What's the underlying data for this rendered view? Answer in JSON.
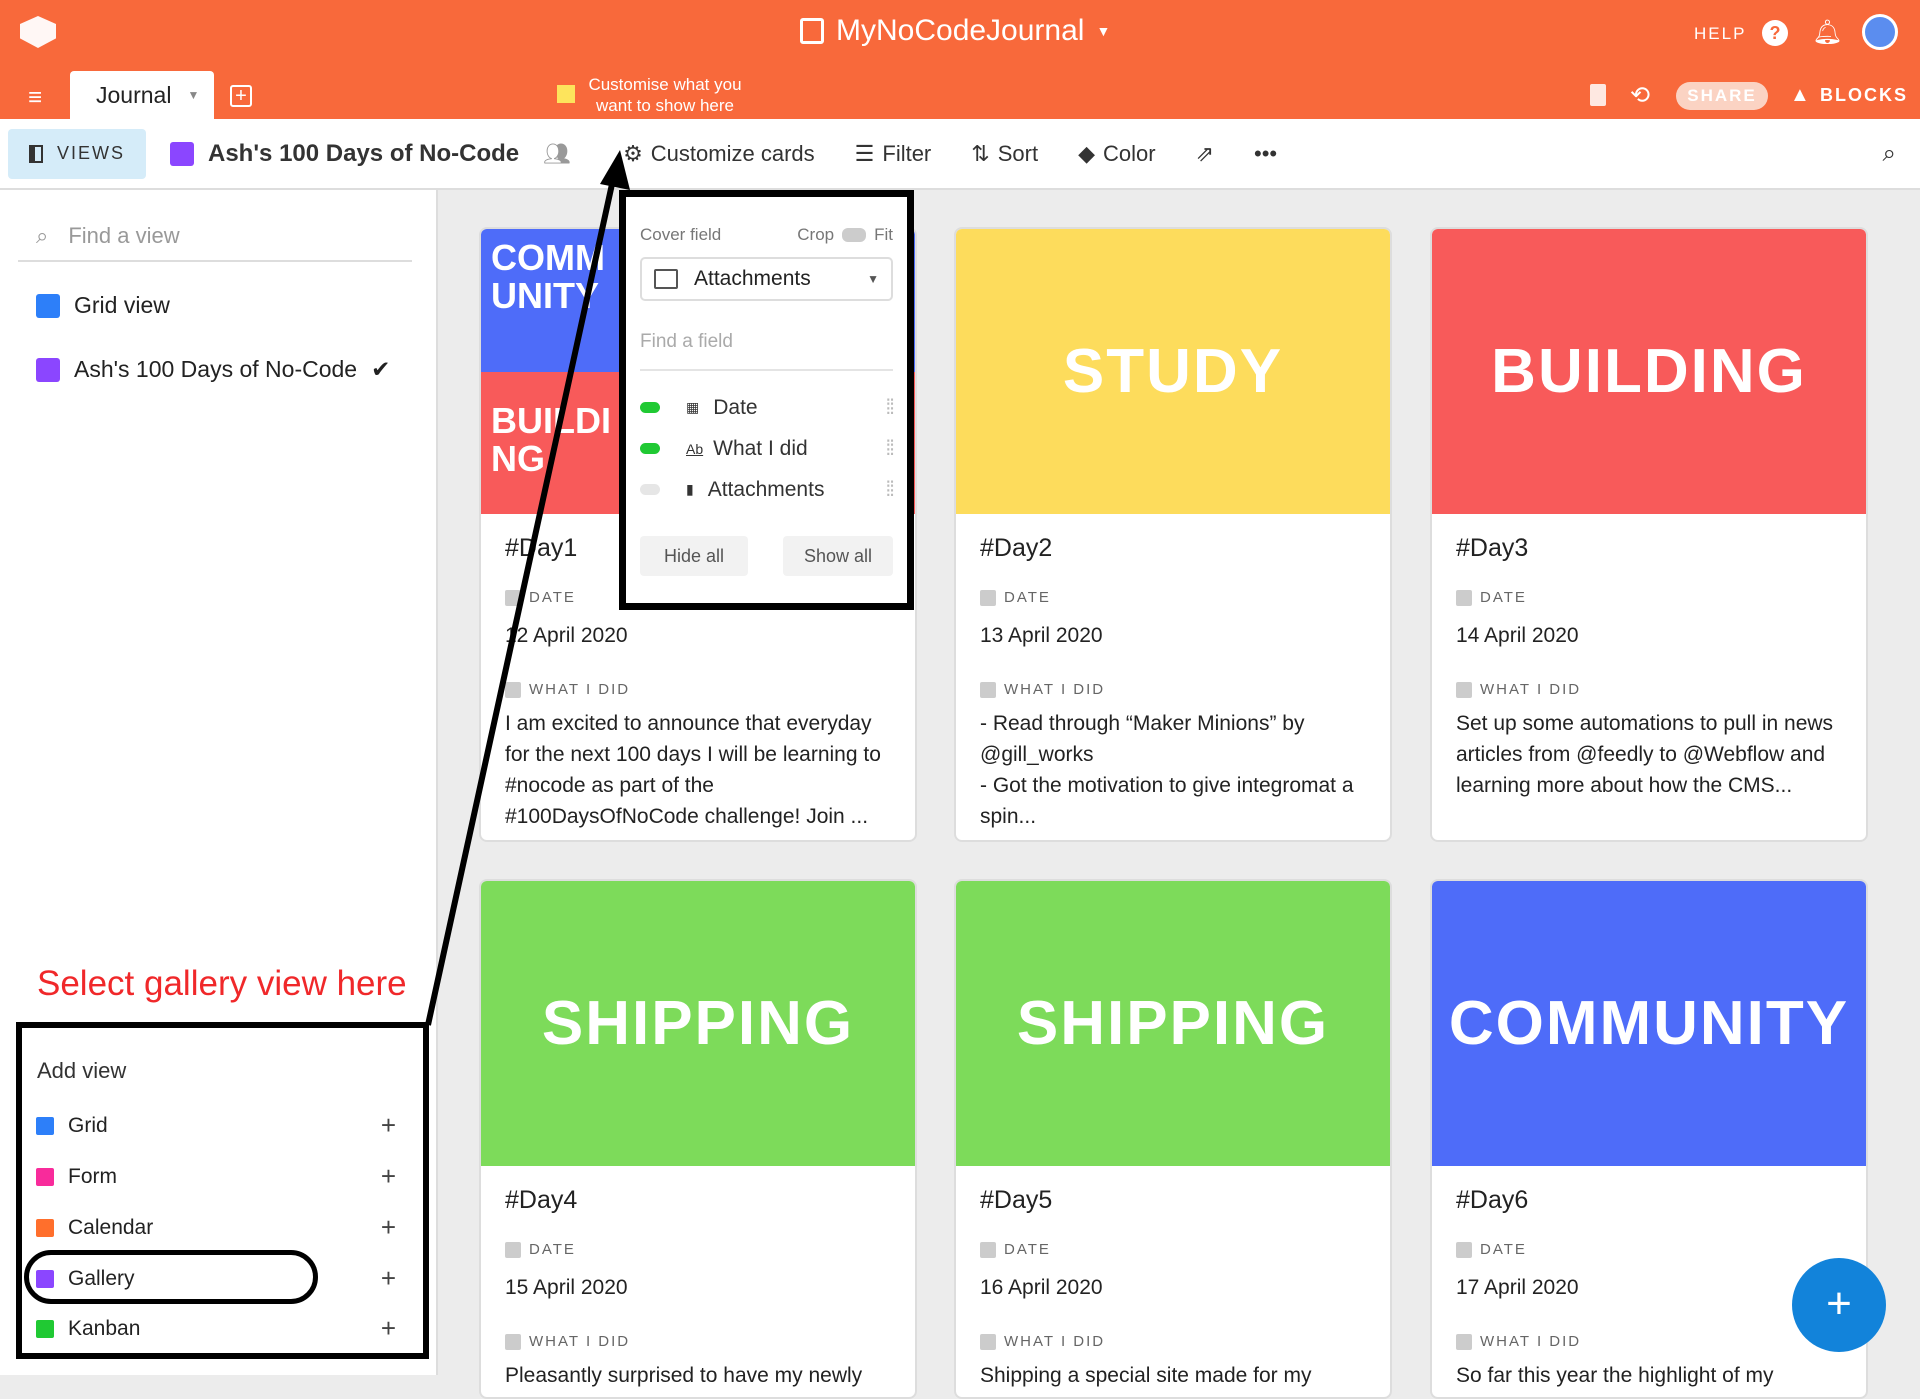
{
  "app": {
    "base_name": "MyNoCodeJournal",
    "help": "HELP",
    "share": "SHARE",
    "blocks": "BLOCKS",
    "brand_color": "#f8693b"
  },
  "tabs": [
    {
      "label": "Journal"
    }
  ],
  "tip": "Customise what you want to show here",
  "toolbar": {
    "views": "VIEWS",
    "view_name": "Ash's 100 Days of No-Code",
    "customize": "Customize cards",
    "filter": "Filter",
    "sort": "Sort",
    "color": "Color"
  },
  "sidebar": {
    "search_placeholder": "Find a view",
    "views": [
      {
        "label": "Grid view",
        "icon": "grid-icon"
      },
      {
        "label": "Ash's 100 Days of No-Code",
        "icon": "gallery-icon",
        "selected": true
      }
    ],
    "annotation": "Select gallery view here",
    "add_view": {
      "title": "Add view",
      "items": [
        {
          "label": "Grid",
          "color": "#2d7ff9"
        },
        {
          "label": "Form",
          "color": "#f82b9b"
        },
        {
          "label": "Calendar",
          "color": "#ff6f2c"
        },
        {
          "label": "Gallery",
          "color": "#8b46ff"
        },
        {
          "label": "Kanban",
          "color": "#20c933"
        }
      ]
    }
  },
  "popup": {
    "cover_field": "Cover field",
    "crop": "Crop",
    "fit": "Fit",
    "selected": "Attachments",
    "find_placeholder": "Find a field",
    "fields": [
      {
        "label": "Date",
        "on": true
      },
      {
        "label": "What I did",
        "on": true
      },
      {
        "label": "Attachments",
        "on": false
      }
    ],
    "hide_all": "Hide all",
    "show_all": "Show all"
  },
  "labels": {
    "date": "DATE",
    "what": "WHAT I DID"
  },
  "cards": [
    {
      "cover": "COMMUNITY",
      "cover2": "BUILDING",
      "color": "#4e6cf9",
      "color2": "#f85a5a",
      "title": "#Day1",
      "date": "12 April 2020",
      "text": "I am excited to announce that everyday for the next 100 days I will be learning to #nocode as part of the #100DaysOfNoCode challenge! Join ..."
    },
    {
      "cover": "STUDY",
      "color": "#fddc5c",
      "title": "#Day2",
      "date": "13 April 2020",
      "text": "- Read through “Maker Minions” by @gill_works\n- Got the motivation to give integromat a spin..."
    },
    {
      "cover": "BUILDING",
      "color": "#f85a5a",
      "title": "#Day3",
      "date": "14 April 2020",
      "text": "Set up some automations to pull in news articles from @feedly to @Webflow and learning more about how the CMS..."
    },
    {
      "cover": "SHIPPING",
      "color": "#7ddb5a",
      "title": "#Day4",
      "date": "15 April 2020",
      "text": "Pleasantly surprised to have my newly"
    },
    {
      "cover": "SHIPPING",
      "color": "#7ddb5a",
      "title": "#Day5",
      "date": "16 April 2020",
      "text": "Shipping a special site made for my"
    },
    {
      "cover": "COMMUNITY",
      "color": "#4e6cf9",
      "title": "#Day6",
      "date": "17 April 2020",
      "text": "So far this year the highlight of my"
    }
  ]
}
